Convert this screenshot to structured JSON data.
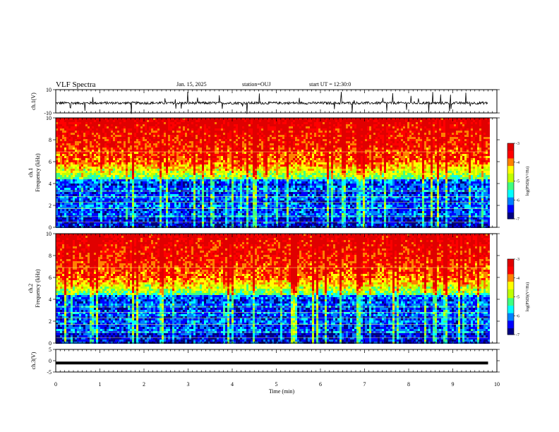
{
  "header": {
    "title": "VLF Spectra",
    "date": "Jan. 15, 2025",
    "station": "station=OUJ",
    "start_ut": "start UT =   12:30:0"
  },
  "chart_data": [
    {
      "type": "line",
      "name": "ch1-waveform",
      "ylabel": "ch.1(V)",
      "ylim": [
        -10,
        10
      ],
      "yticks": [
        "10",
        "-10"
      ],
      "x_range_min": [
        0,
        9.8
      ],
      "baseline": -1.5,
      "line_color": "#000000"
    },
    {
      "type": "heatmap",
      "name": "ch1-spectrogram",
      "ylabel": "ch.1\nFrequency (kHz)",
      "ylabel_lines": [
        "ch.1",
        "Frequency (kHz)"
      ],
      "ylim": [
        0,
        10
      ],
      "yticks": [
        "0",
        "2",
        "4",
        "6",
        "8",
        "10"
      ],
      "x_range_min": [
        0,
        9.8
      ],
      "colorbar": {
        "label": "log(PSD)(V²/Hz)",
        "range": [
          -7,
          -3
        ],
        "ticks": [
          "-3",
          "-4",
          "-5",
          "-6",
          "-7"
        ]
      }
    },
    {
      "type": "heatmap",
      "name": "ch2-spectrogram",
      "ylabel": "ch.2\nFrequency (kHz)",
      "ylabel_lines": [
        "ch.2",
        "Frequency (kHz)"
      ],
      "ylim": [
        0,
        10
      ],
      "yticks": [
        "0",
        "2",
        "4",
        "6",
        "8",
        "10"
      ],
      "x_range_min": [
        0,
        9.8
      ],
      "colorbar": {
        "label": "log(PSD)(V²/Hz)",
        "range": [
          -7,
          -3
        ],
        "ticks": [
          "-3",
          "-4",
          "-5",
          "-6",
          "-7"
        ]
      }
    },
    {
      "type": "line",
      "name": "ch3-waveform",
      "ylabel": "ch.3(V)",
      "ylim": [
        -5,
        5
      ],
      "yticks": [
        "5",
        "0",
        "-5"
      ],
      "x_range_min": [
        0,
        9.8
      ],
      "value": -1,
      "line_color": "#000000"
    }
  ],
  "x_axis": {
    "label": "Time (min)",
    "ticks": [
      "0",
      "1",
      "2",
      "3",
      "4",
      "5",
      "6",
      "7",
      "8",
      "9",
      "10"
    ],
    "xlim": [
      0,
      10
    ]
  },
  "colorscale": [
    "#000080",
    "#0000ff",
    "#0080ff",
    "#00ffff",
    "#40ff80",
    "#c0ff00",
    "#ffff00",
    "#ff8000",
    "#ff0000",
    "#e00000"
  ]
}
